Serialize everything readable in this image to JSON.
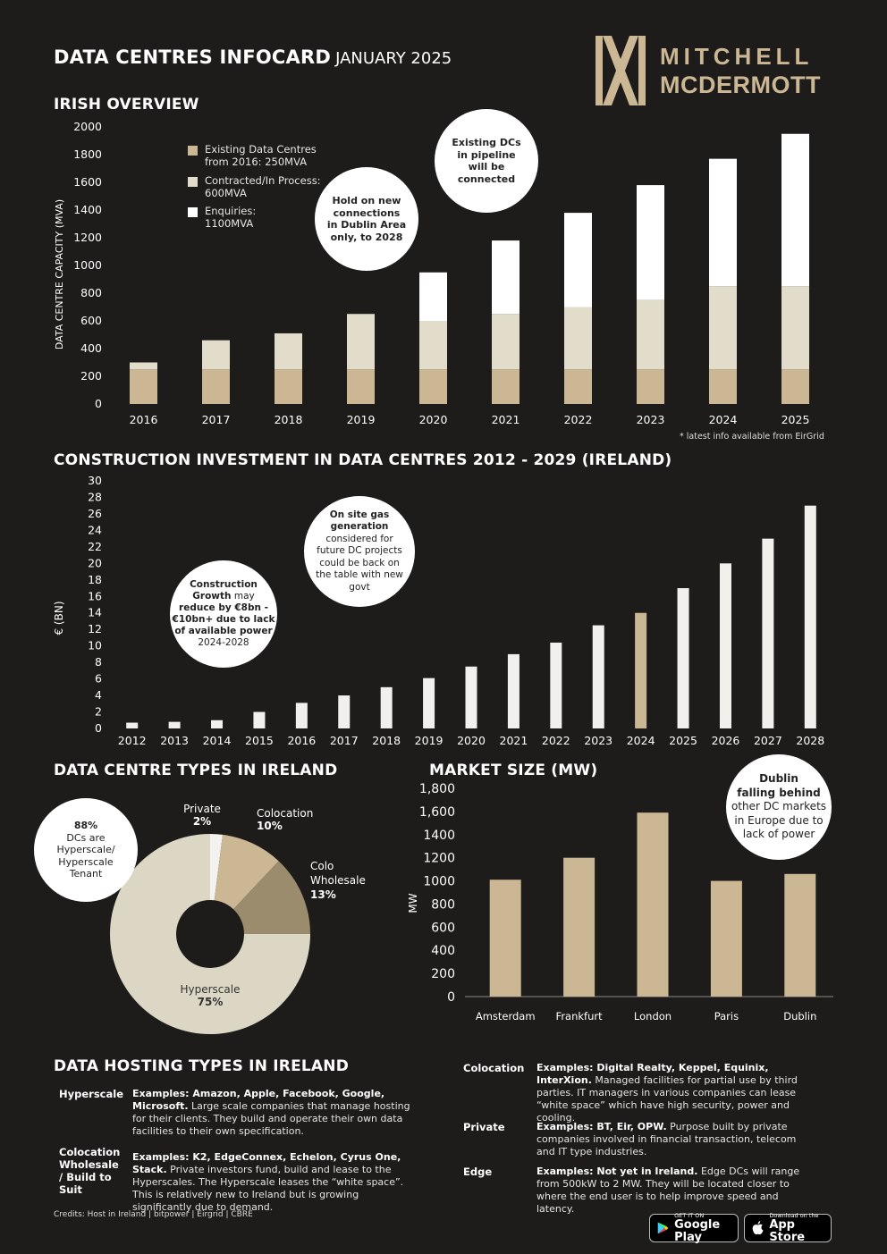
{
  "header": {
    "title": "DATA CENTRES INFOCARD",
    "month": "JANUARY 2025",
    "logo_line1": "MITCHELL",
    "logo_line2": "MCDERMOTT"
  },
  "irish_overview": {
    "heading": "IRISH OVERVIEW",
    "ylabel": "DATA CENTRE CAPACITY (MVA)",
    "legend": [
      {
        "line1": "Existing Data Centres",
        "line2": "from 2016: 250MVA",
        "color": "#cbb793"
      },
      {
        "line1": "Contracted/In Process:",
        "line2": "600MVA",
        "color": "#e2dccb"
      },
      {
        "line1": "Enquiries:",
        "line2": "1100MVA",
        "color": "#ffffff"
      }
    ],
    "bubble_hold": [
      "Hold on new",
      "connections",
      "in Dublin Area",
      "only, to 2028"
    ],
    "bubble_pipeline": [
      "Existing DCs",
      "in pipeline",
      "will be",
      "connected"
    ],
    "footnote": "* latest info available from EirGrid"
  },
  "construction": {
    "heading": "CONSTRUCTION INVESTMENT IN DATA CENTRES 2012 - 2029 (IRELAND)",
    "ylabel": "€ (BN)",
    "bubble_growth": [
      "Construction",
      "Growth may",
      "reduce by €8bn -",
      "€10bn+ due to lack",
      "of available power",
      "2024-2028"
    ],
    "bubble_gas": [
      "On site gas",
      "generation",
      "considered for",
      "future DC projects",
      "could be back on",
      "the table with new",
      "govt"
    ]
  },
  "types": {
    "heading": "DATA CENTRE TYPES IN IRELAND",
    "bubble": [
      "88%",
      "DCs are",
      "Hyperscale/",
      "Hyperscale",
      "Tenant"
    ],
    "labels": {
      "private": "Private",
      "private_pct": "2%",
      "colocation": "Colocation",
      "colocation_pct": "10%",
      "colo_line1": "Colo",
      "colo_line2": "Wholesale",
      "colo_pct": "13%",
      "hyperscale": "Hyperscale",
      "hyperscale_pct": "75%"
    }
  },
  "market": {
    "heading": "MARKET SIZE (MW)",
    "ylabel": "MW",
    "bubble": [
      "Dublin",
      "falling behind",
      "other DC markets",
      "in Europe due to",
      "lack of power"
    ]
  },
  "hosting": {
    "heading": "DATA HOSTING TYPES IN IRELAND",
    "items": [
      {
        "label": [
          "Hyperscale"
        ],
        "examples": "Examples: Amazon, Apple, Facebook, Google, Microsoft.",
        "text": "Large scale companies that manage hosting for their clients. They build and operate their own data facilities to their own specification."
      },
      {
        "label": [
          "Colocation",
          "Wholesale",
          "/ Build to",
          "Suit"
        ],
        "examples": "Examples: K2, EdgeConnex, Echelon, Cyrus One, Stack.",
        "text": "Private investors fund, build and lease to the Hyperscales. The Hyperscale leases the “white space”. This is relatively new to Ireland but is growing significantly due to demand."
      },
      {
        "label": [
          "Colocation"
        ],
        "examples": "Examples: Digital Realty, Keppel, Equinix, InterXion.",
        "text": "Managed facilities for partial use by third parties. IT managers in various companies can lease “white space” which have high security, power and cooling."
      },
      {
        "label": [
          "Private"
        ],
        "examples": "Examples: BT, Eir, OPW.",
        "text": "Purpose built by private companies involved in financial transaction, telecom and IT type industries."
      },
      {
        "label": [
          "Edge"
        ],
        "examples": "Examples: Not yet in Ireland.",
        "text": "Edge DCs will range from 500kW to 2 MW. They will be located closer to where the end user is to help improve speed and latency."
      }
    ],
    "credits": "Credits: Host in Ireland | bitpower | Eirgrid | CBRE"
  },
  "stores": {
    "google_small": "GET IT ON",
    "google_big": "Google Play",
    "apple_small": "Download on the",
    "apple_big": "App Store"
  },
  "chart_data": [
    {
      "type": "bar",
      "stacked": true,
      "ylabel": "DATA CENTRE CAPACITY (MVA)",
      "ylim": [
        0,
        2000
      ],
      "yticks": [
        0,
        200,
        400,
        600,
        800,
        1000,
        1200,
        1400,
        1600,
        1800,
        2000
      ],
      "categories": [
        "2016",
        "2017",
        "2018",
        "2019",
        "2020",
        "2021",
        "2022",
        "2023",
        "2024",
        "2025"
      ],
      "series": [
        {
          "name": "Existing Data Centres from 2016: 250MVA",
          "color": "#cbb793",
          "values": [
            250,
            250,
            250,
            250,
            250,
            250,
            250,
            250,
            250,
            250
          ]
        },
        {
          "name": "Contracted/In Process: 600MVA",
          "color": "#e2dccb",
          "values": [
            50,
            210,
            260,
            400,
            350,
            400,
            450,
            500,
            600,
            600
          ]
        },
        {
          "name": "Enquiries: 1100MVA",
          "color": "#ffffff",
          "values": [
            0,
            0,
            0,
            0,
            350,
            530,
            680,
            830,
            920,
            1100
          ]
        }
      ]
    },
    {
      "type": "bar",
      "ylabel": "€ (BN)",
      "ylim": [
        0,
        30
      ],
      "yticks": [
        0,
        2,
        4,
        6,
        8,
        10,
        12,
        14,
        16,
        18,
        20,
        22,
        24,
        26,
        28,
        30
      ],
      "categories": [
        "2012",
        "2013",
        "2014",
        "2015",
        "2016",
        "2017",
        "2018",
        "2019",
        "2020",
        "2021",
        "2022",
        "2023",
        "2024",
        "2025",
        "2026",
        "2027",
        "2028"
      ],
      "values": [
        0.7,
        0.8,
        1.0,
        2.0,
        3.1,
        4.0,
        5.0,
        6.1,
        7.5,
        9.0,
        10.4,
        12.5,
        14.0,
        17.0,
        20.0,
        23.0,
        27.0
      ],
      "colors": {
        "default": "#f2f0ec",
        "highlight": "#cbb793",
        "highlight_index": 12
      }
    },
    {
      "type": "pie",
      "donut": true,
      "slices": [
        {
          "label": "Private",
          "value": 2,
          "color": "#f4f2ee"
        },
        {
          "label": "Colocation",
          "value": 10,
          "color": "#cbb793"
        },
        {
          "label": "Colo Wholesale",
          "value": 13,
          "color": "#9a8c6c"
        },
        {
          "label": "Hyperscale",
          "value": 75,
          "color": "#dcd7c5"
        }
      ]
    },
    {
      "type": "bar",
      "ylabel": "MW",
      "ylim": [
        0,
        1800
      ],
      "yticks": [
        "0",
        "200",
        "400",
        "600",
        "800",
        "1000",
        "1200",
        "1400",
        "1,600",
        "1,800"
      ],
      "categories": [
        "Amsterdam",
        "Frankfurt",
        "London",
        "Paris",
        "Dublin"
      ],
      "values": [
        1010,
        1200,
        1590,
        1000,
        1060
      ],
      "color": "#cbb793"
    }
  ]
}
